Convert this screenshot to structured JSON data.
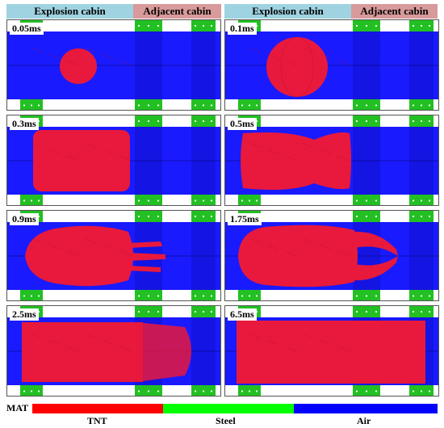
{
  "headers": {
    "explosion_cabin": "Explosion cabin",
    "adjacent_cabin": "Adjacent cabin"
  },
  "frames": [
    {
      "time": "0.05ms",
      "shape": "sphere-small"
    },
    {
      "time": "0.1ms",
      "shape": "sphere-large"
    },
    {
      "time": "0.3ms",
      "shape": "block"
    },
    {
      "time": "0.5ms",
      "shape": "block-pinched"
    },
    {
      "time": "0.9ms",
      "shape": "jet-short"
    },
    {
      "time": "1.75ms",
      "shape": "jet-long"
    },
    {
      "time": "2.5ms",
      "shape": "fill-partial"
    },
    {
      "time": "6.5ms",
      "shape": "fill-full"
    }
  ],
  "legend": {
    "title": "MAT",
    "items": [
      {
        "label": "TNT",
        "color": "#ff0000"
      },
      {
        "label": "Steel",
        "color": "#00ff00"
      },
      {
        "label": "Air",
        "color": "#0000ff"
      }
    ]
  },
  "colors": {
    "air": "#1a1aff",
    "steel": "#22c022",
    "tnt": "#e8193c",
    "explosion_header": "#9fd3e1",
    "adjacent_header": "#d89a9b"
  }
}
